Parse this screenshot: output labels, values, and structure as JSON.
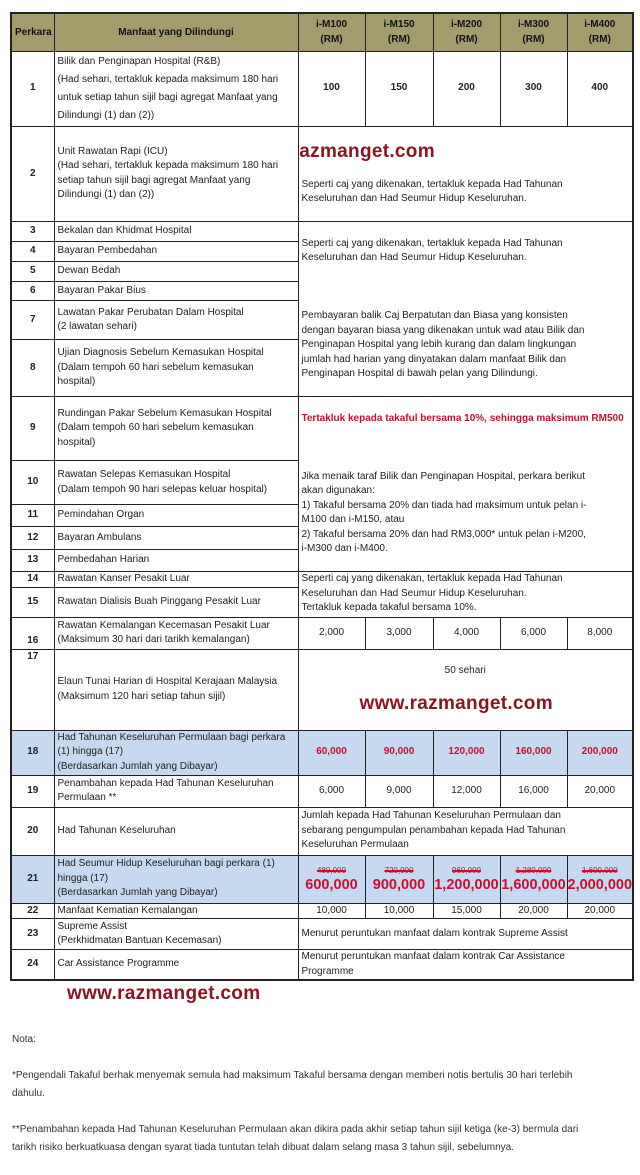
{
  "header": {
    "perkara": "Perkara",
    "manfaat": "Manfaat yang Dilindungi",
    "plans": [
      "i-M100\n(RM)",
      "i-M150\n(RM)",
      "i-M200\n(RM)",
      "i-M300\n(RM)",
      "i-M400\n(RM)"
    ]
  },
  "rows": [
    {
      "no": "1",
      "benefit": "Bilik dan Penginapan Hospital (R&B)\n(Had sehari, tertakluk kepada maksimum 180 hari\nuntuk setiap tahun sijil bagi agregat Manfaat yang\nDilindungi (1) dan (2))",
      "values": [
        "100",
        "150",
        "200",
        "300",
        "400"
      ]
    },
    {
      "no": "2",
      "benefit": "Unit Rawatan Rapi (ICU)\n(Had sehari, tertakluk kepada maksimum 180 hari\nsetiap tahun sijil bagi agregat Manfaat yang\nDilindungi (1) dan (2))",
      "coverage": "Seperti caj yang dikenakan, tertakluk kepada Had Tahunan\nKeseluruhan dan Had Seumur Hidup Keseluruhan."
    },
    {
      "no": "3",
      "benefit": "Bekalan dan Khidmat Hospital"
    },
    {
      "no": "4",
      "benefit": "Bayaran Pembedahan"
    },
    {
      "no": "5",
      "benefit": "Dewan Bedah"
    },
    {
      "no": "6",
      "benefit": "Bayaran Pakar Bius"
    },
    {
      "no": "7",
      "benefit": "Lawatan Pakar Perubatan Dalam Hospital\n(2 lawatan sehari)"
    },
    {
      "no": "8",
      "benefit": "Ujian Diagnosis Sebelum Kemasukan Hospital\n(Dalam tempoh 60 hari sebelum kemasukan\nhospital)"
    },
    {
      "no": "9",
      "benefit": "Rundingan Pakar Sebelum Kemasukan Hospital\n(Dalam tempoh 60 hari sebelum kemasukan\nhospital)"
    },
    {
      "no": "10",
      "benefit": "Rawatan Selepas Kemasukan Hospital\n(Dalam tempoh 90 hari selepas keluar hospital)"
    },
    {
      "no": "11",
      "benefit": "Pemindahan Organ"
    },
    {
      "no": "12",
      "benefit": "Bayaran Ambulans"
    },
    {
      "no": "13",
      "benefit": "Pembedahan Harian"
    },
    {
      "no": "14",
      "benefit": "Rawatan Kanser Pesakit Luar"
    },
    {
      "no": "15",
      "benefit": "Rawatan Dialisis Buah Pinggang Pesakit Luar"
    },
    {
      "no": "16",
      "benefit": "Rawatan Kemalangan Kecemasan Pesakit Luar\n(Maksimum 30 hari dari tarikh kemalangan)",
      "values": [
        "2,000",
        "3,000",
        "4,000",
        "6,000",
        "8,000"
      ]
    },
    {
      "no": "17",
      "benefit": "Elaun Tunai Harian di Hospital Kerajaan Malaysia\n(Maksimum 120 hari setiap tahun sijil)",
      "coverage": "50 sehari"
    },
    {
      "no": "18",
      "benefit": "Had Tahunan Keseluruhan Permulaan bagi perkara\n(1) hingga (17)\n(Berdasarkan Jumlah yang Dibayar)",
      "values": [
        "60,000",
        "90,000",
        "120,000",
        "160,000",
        "200,000"
      ]
    },
    {
      "no": "19",
      "benefit": "Penambahan kepada Had Tahunan Keseluruhan\nPermulaan **",
      "values": [
        "6,000",
        "9,000",
        "12,000",
        "16,000",
        "20,000"
      ]
    },
    {
      "no": "20",
      "benefit": "Had Tahunan Keseluruhan",
      "coverage": "Jumlah kepada Had Tahunan Keseluruhan Permulaan dan\nsebarang pengumpulan penambahan kepada Had Tahunan\nKeseluruhan Permulaan"
    },
    {
      "no": "21",
      "benefit": "Had Seumur Hidup Keseluruhan bagi perkara (1)\nhingga (17)\n(Berdasarkan Jumlah yang Dibayar)",
      "old_values": [
        "480,000",
        "720,000",
        "960,000",
        "1,280,000",
        "1,600,000"
      ],
      "values": [
        "600,000",
        "900,000",
        "1,200,000",
        "1,600,000",
        "2,000,000"
      ]
    },
    {
      "no": "22",
      "benefit": "Manfaat Kematian Kemalangan",
      "values": [
        "10,000",
        "10,000",
        "15,000",
        "20,000",
        "20,000"
      ]
    },
    {
      "no": "23",
      "benefit": "Supreme Assist\n(Perkhidmatan Bantuan Kecemasan)",
      "coverage": "Menurut peruntukan manfaat dalam kontrak Supreme Assist"
    },
    {
      "no": "24",
      "benefit": "Car Assistance Programme",
      "coverage": "Menurut peruntukan manfaat dalam kontrak Car Assistance\nProgramme"
    }
  ],
  "blocks": {
    "rows_3_8_a": "Seperti caj yang dikenakan, tertakluk kepada Had Tahunan\nKeseluruhan dan Had Seumur Hidup Keseluruhan.",
    "rows_3_8_b": "Pembayaran balik Caj Berpatutan dan Biasa yang konsisten\ndengan bayaran biasa yang dikenakan untuk wad atau Bilik dan\nPenginapan Hospital yang lebih kurang dan dalam lingkungan\njumlah had harian yang dinyatakan dalam manfaat Bilik dan\nPenginapan Hospital di bawah pelan yang Dilindungi.",
    "rows_9_13_red": "Tertakluk kepada takaful bersama 10%, sehingga maksimum RM500",
    "rows_9_13_b": "Jika menaik taraf Bilik dan Penginapan Hospital, perkara berikut\nakan digunakan:\n1) Takaful bersama 20% dan tiada had maksimum untuk pelan i-\nM100 dan i-M150, atau\n2) Takaful bersama 20% dan had RM3,000* untuk pelan i-M200,\ni-M300 dan i-M400.",
    "rows_14_15": "Seperti caj yang dikenakan, tertakluk kepada Had Tahunan\nKeseluruhan dan Had Seumur Hidup Keseluruhan.\nTertakluk kepada takaful bersama 10%."
  },
  "watermark": "www.razmanget.com",
  "notes": {
    "title": "Nota:",
    "items": [
      "*Pengendali Takaful berhak menyemak semula had maksimum Takaful bersama dengan memberi notis bertulis 30 hari terlebih\ndahulu.",
      "**Penambahan kepada Had Tahunan Keseluruhan Permulaan akan dikira pada akhir setiap tahun sijil ketiga (ke-3) bermula dari\ntarikh risiko berkuatkuasa dengan syarat tiada tuntutan telah dibuat dalam selang masa 3 tahun sijil, sebelumnya."
    ]
  },
  "colors": {
    "header_bg": "#a39c6c",
    "highlight_bg": "#c6d9f0",
    "red": "#c8102e",
    "watermark": "#8b1420"
  }
}
